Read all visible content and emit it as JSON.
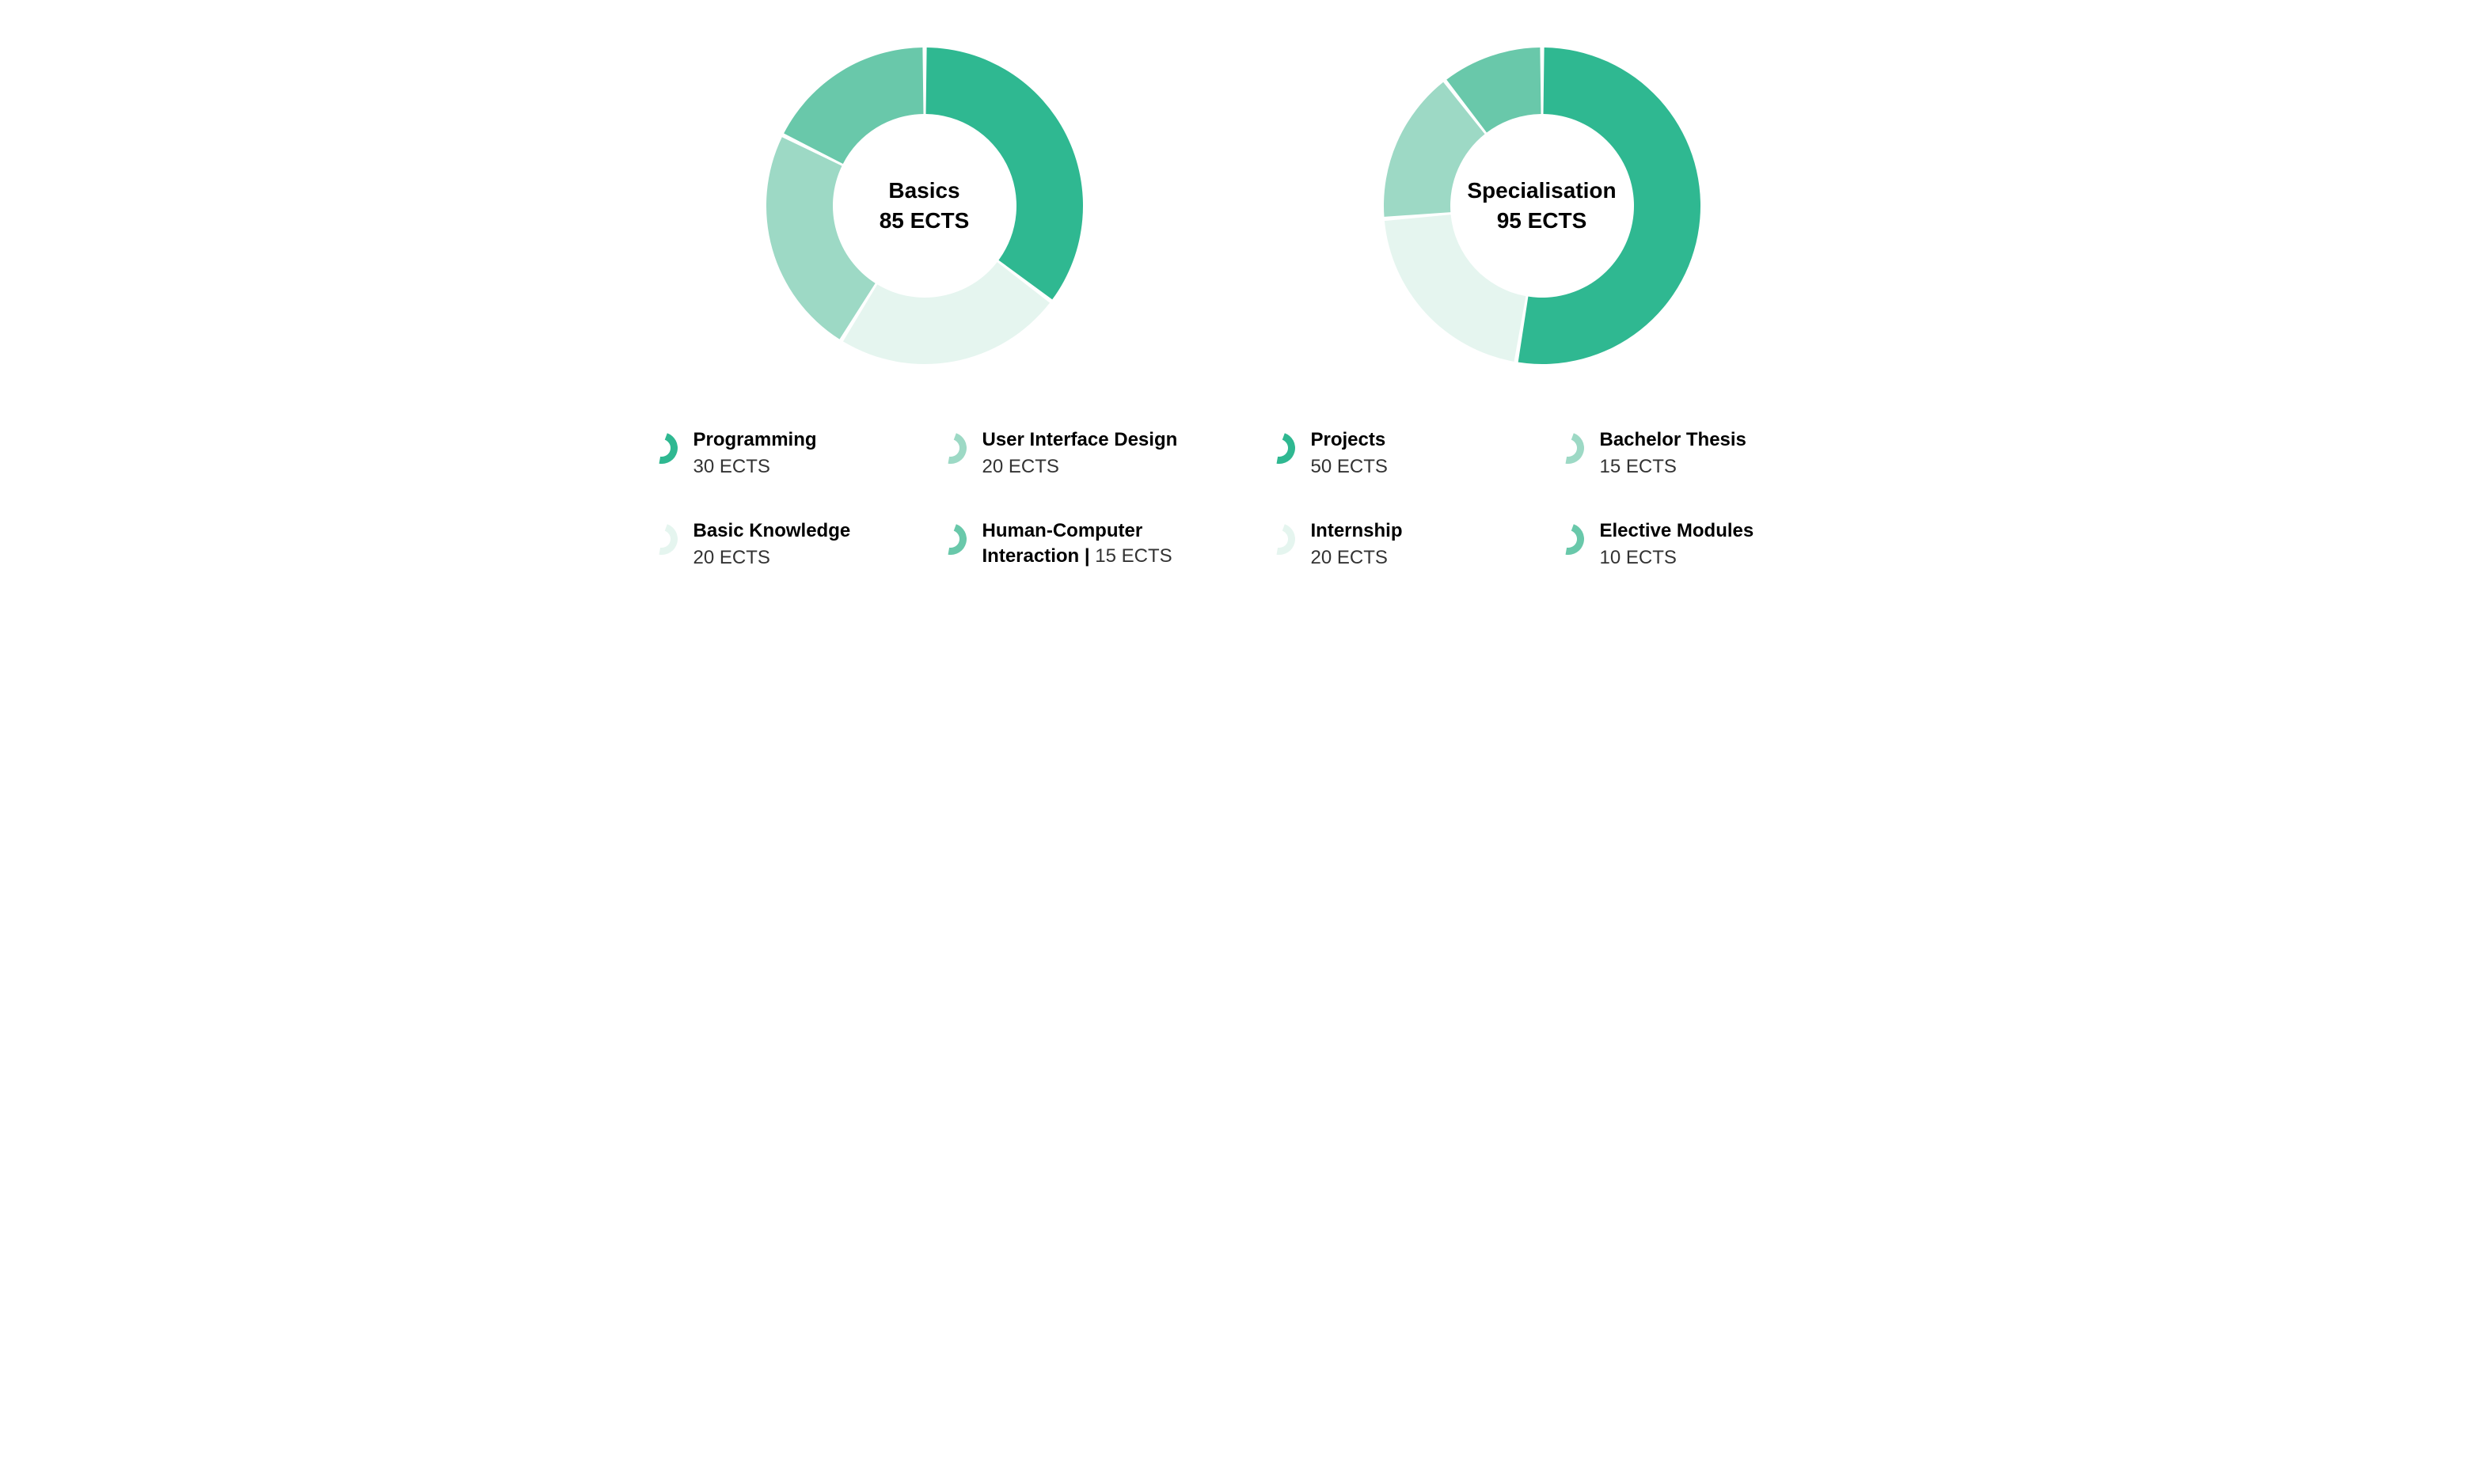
{
  "background_color": "#ffffff",
  "text_color": "#000000",
  "subtext_color": "#333333",
  "font_family": "sans-serif",
  "charts": [
    {
      "id": "basics",
      "type": "donut",
      "center_title": "Basics",
      "center_subtitle": "85 ECTS",
      "center_fontsize": 28,
      "center_fontweight": 700,
      "outer_radius": 100,
      "inner_radius": 58,
      "gap_deg": 1.5,
      "start_angle_deg": -90,
      "slices": [
        {
          "label": "Programming",
          "value": 30,
          "color": "#2fb891"
        },
        {
          "label": "Basic Knowledge",
          "value": 20,
          "color": "#e5f5ef"
        },
        {
          "label": "User Interface Design",
          "value": 20,
          "color": "#9dd9c5"
        },
        {
          "label": "Human-Computer Interaction",
          "value": 15,
          "color": "#69c8aa"
        }
      ],
      "legend": [
        {
          "name": "Programming",
          "sub": "30 ECTS",
          "color": "#2fb891",
          "inline": false
        },
        {
          "name": "User Interface Design",
          "sub": "20 ECTS",
          "color": "#9dd9c5",
          "inline": false
        },
        {
          "name": "Basic Knowledge",
          "sub": "20 ECTS",
          "color": "#e5f5ef",
          "inline": false
        },
        {
          "name": "Human-Computer Interaction | ",
          "sub": "15 ECTS",
          "color": "#69c8aa",
          "inline": true
        }
      ]
    },
    {
      "id": "specialisation",
      "type": "donut",
      "center_title": "Specialisation",
      "center_subtitle": "95 ECTS",
      "center_fontsize": 28,
      "center_fontweight": 700,
      "outer_radius": 100,
      "inner_radius": 58,
      "gap_deg": 1.5,
      "start_angle_deg": -90,
      "slices": [
        {
          "label": "Projects",
          "value": 50,
          "color": "#2fb891"
        },
        {
          "label": "Internship",
          "value": 20,
          "color": "#e5f5ef"
        },
        {
          "label": "Bachelor Thesis",
          "value": 15,
          "color": "#9dd9c5"
        },
        {
          "label": "Elective Modules",
          "value": 10,
          "color": "#69c8aa"
        }
      ],
      "legend": [
        {
          "name": "Projects",
          "sub": "50 ECTS",
          "color": "#2fb891",
          "inline": false
        },
        {
          "name": "Bachelor Thesis",
          "sub": "15 ECTS",
          "color": "#9dd9c5",
          "inline": false
        },
        {
          "name": "Internship",
          "sub": "20 ECTS",
          "color": "#e5f5ef",
          "inline": false
        },
        {
          "name": "Elective Modules",
          "sub": "10 ECTS",
          "color": "#69c8aa",
          "inline": false
        }
      ]
    }
  ]
}
